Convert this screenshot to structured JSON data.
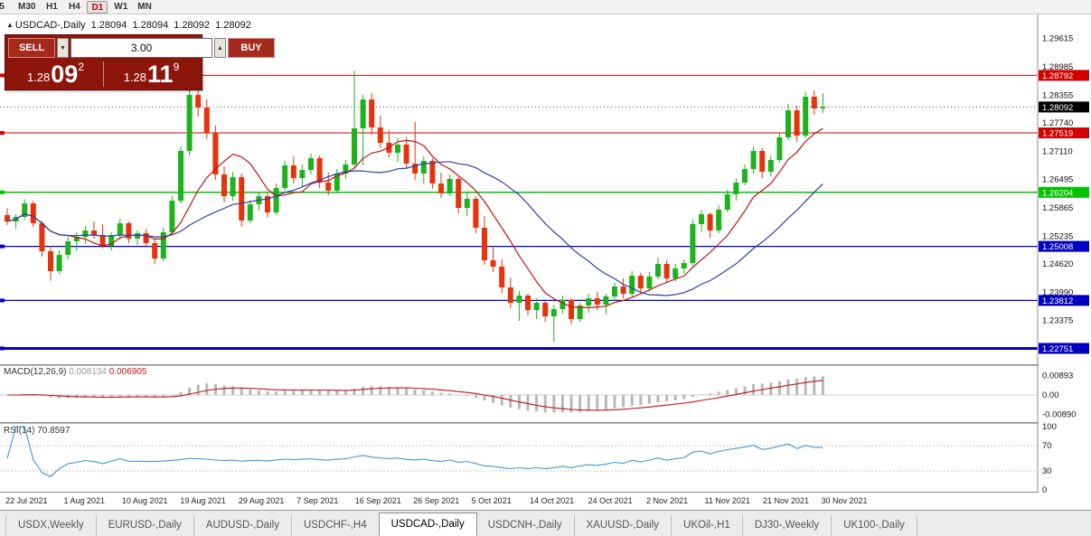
{
  "toolbar": {
    "timeframes": [
      {
        "label": "5",
        "active": false
      },
      {
        "label": "M30",
        "active": false
      },
      {
        "label": "H1",
        "active": false
      },
      {
        "label": "H4",
        "active": false
      },
      {
        "label": "D1",
        "active": true
      },
      {
        "label": "W1",
        "active": false
      },
      {
        "label": "MN",
        "active": false
      }
    ]
  },
  "icons": {
    "collapse_triangle": "▲",
    "volume_down": "▼",
    "volume_up": "▲"
  },
  "chart_header": {
    "symbol": "USDCAD-,Daily",
    "open": "1.28094",
    "high": "1.28094",
    "low": "1.28092",
    "close": "1.28092"
  },
  "trade_panel": {
    "sell_label": "SELL",
    "buy_label": "BUY",
    "volume": "3.00",
    "sell_price_prefix": "1.28",
    "sell_price_big": "09",
    "sell_price_sup": "2",
    "buy_price_prefix": "1.28",
    "buy_price_big": "11",
    "buy_price_sup": "9"
  },
  "chart_data": {
    "type": "candlestick",
    "title": "USDCAD-,Daily",
    "x_dates": [
      "22 Jul 2021",
      "1 Aug 2021",
      "10 Aug 2021",
      "19 Aug 2021",
      "29 Aug 2021",
      "7 Sep 2021",
      "16 Sep 2021",
      "26 Sep 2021",
      "5 Oct 2021",
      "14 Oct 2021",
      "24 Oct 2021",
      "2 Nov 2021",
      "11 Nov 2021",
      "21 Nov 2021",
      "30 Nov 2021"
    ],
    "price_axis_ticks": [
      "1.29615",
      "1.28985",
      "1.28355",
      "1.27740",
      "1.27110",
      "1.26495",
      "1.25865",
      "1.25235",
      "1.24620",
      "1.23990",
      "1.23375"
    ],
    "candles": [
      [
        1.257,
        1.2585,
        1.2548,
        1.2556
      ],
      [
        1.2556,
        1.2572,
        1.254,
        1.2566
      ],
      [
        1.2566,
        1.2605,
        1.256,
        1.2596
      ],
      [
        1.2596,
        1.2602,
        1.2544,
        1.2552
      ],
      [
        1.2552,
        1.2558,
        1.2478,
        1.249
      ],
      [
        1.249,
        1.2502,
        1.2425,
        1.2446
      ],
      [
        1.2446,
        1.2492,
        1.244,
        1.2482
      ],
      [
        1.2482,
        1.2522,
        1.2472,
        1.2512
      ],
      [
        1.2512,
        1.2532,
        1.2492,
        1.2522
      ],
      [
        1.2522,
        1.2546,
        1.2506,
        1.2536
      ],
      [
        1.2536,
        1.2556,
        1.2518,
        1.2526
      ],
      [
        1.2526,
        1.255,
        1.2496,
        1.2502
      ],
      [
        1.2502,
        1.2532,
        1.2492,
        1.2526
      ],
      [
        1.2526,
        1.2562,
        1.2516,
        1.2552
      ],
      [
        1.2552,
        1.2556,
        1.2508,
        1.2518
      ],
      [
        1.2518,
        1.2536,
        1.2504,
        1.253
      ],
      [
        1.253,
        1.254,
        1.2498,
        1.2508
      ],
      [
        1.2508,
        1.2518,
        1.2462,
        1.2474
      ],
      [
        1.2474,
        1.2542,
        1.2468,
        1.2532
      ],
      [
        1.2532,
        1.2612,
        1.2526,
        1.2602
      ],
      [
        1.2602,
        1.2722,
        1.2596,
        1.2712
      ],
      [
        1.2712,
        1.2852,
        1.2702,
        1.2836
      ],
      [
        1.2836,
        1.2858,
        1.2788,
        1.2808
      ],
      [
        1.2808,
        1.2826,
        1.2738,
        1.2752
      ],
      [
        1.2752,
        1.2768,
        1.2648,
        1.266
      ],
      [
        1.266,
        1.2678,
        1.2598,
        1.2612
      ],
      [
        1.2612,
        1.2666,
        1.2602,
        1.2654
      ],
      [
        1.2654,
        1.2662,
        1.2545,
        1.2558
      ],
      [
        1.2558,
        1.2604,
        1.2552,
        1.2594
      ],
      [
        1.2594,
        1.2622,
        1.258,
        1.2612
      ],
      [
        1.2612,
        1.2618,
        1.2565,
        1.2576
      ],
      [
        1.2576,
        1.264,
        1.257,
        1.263
      ],
      [
        1.263,
        1.269,
        1.2624,
        1.268
      ],
      [
        1.268,
        1.27,
        1.264,
        1.2652
      ],
      [
        1.2652,
        1.2682,
        1.2632,
        1.267
      ],
      [
        1.267,
        1.2706,
        1.266,
        1.2696
      ],
      [
        1.2696,
        1.2702,
        1.263,
        1.2642
      ],
      [
        1.2642,
        1.2664,
        1.2614,
        1.2624
      ],
      [
        1.2624,
        1.2672,
        1.2618,
        1.2662
      ],
      [
        1.2662,
        1.2692,
        1.265,
        1.2682
      ],
      [
        1.2682,
        1.289,
        1.2676,
        1.2762
      ],
      [
        1.2762,
        1.2836,
        1.268,
        1.2826
      ],
      [
        1.2826,
        1.284,
        1.2748,
        1.2764
      ],
      [
        1.2764,
        1.279,
        1.2718,
        1.273
      ],
      [
        1.273,
        1.2758,
        1.2698,
        1.2708
      ],
      [
        1.2708,
        1.274,
        1.2688,
        1.2726
      ],
      [
        1.2726,
        1.2742,
        1.2672,
        1.2684
      ],
      [
        1.2684,
        1.2776,
        1.2648,
        1.2662
      ],
      [
        1.2662,
        1.27,
        1.264,
        1.269
      ],
      [
        1.269,
        1.2696,
        1.2628,
        1.264
      ],
      [
        1.264,
        1.2664,
        1.2608,
        1.2618
      ],
      [
        1.2618,
        1.266,
        1.2612,
        1.265
      ],
      [
        1.265,
        1.2654,
        1.2574,
        1.2586
      ],
      [
        1.2586,
        1.2622,
        1.2568,
        1.2606
      ],
      [
        1.2606,
        1.2612,
        1.253,
        1.2542
      ],
      [
        1.2542,
        1.2568,
        1.246,
        1.247
      ],
      [
        1.247,
        1.2502,
        1.2444,
        1.2456
      ],
      [
        1.2456,
        1.2472,
        1.2398,
        1.241
      ],
      [
        1.241,
        1.2432,
        1.2364,
        1.2376
      ],
      [
        1.2376,
        1.2402,
        1.2336,
        1.2392
      ],
      [
        1.2392,
        1.2396,
        1.2348,
        1.236
      ],
      [
        1.236,
        1.2386,
        1.234,
        1.2376
      ],
      [
        1.2376,
        1.238,
        1.2334,
        1.2346
      ],
      [
        1.2346,
        1.2372,
        1.229,
        1.2362
      ],
      [
        1.2362,
        1.2392,
        1.2352,
        1.2382
      ],
      [
        1.2382,
        1.2386,
        1.2328,
        1.234
      ],
      [
        1.234,
        1.2376,
        1.2334,
        1.237
      ],
      [
        1.237,
        1.2396,
        1.2354,
        1.2386
      ],
      [
        1.2386,
        1.24,
        1.236,
        1.2372
      ],
      [
        1.2372,
        1.2396,
        1.235,
        1.239
      ],
      [
        1.239,
        1.242,
        1.238,
        1.2412
      ],
      [
        1.2412,
        1.243,
        1.2386,
        1.2396
      ],
      [
        1.2396,
        1.2446,
        1.239,
        1.2436
      ],
      [
        1.2436,
        1.2442,
        1.2398,
        1.2408
      ],
      [
        1.2408,
        1.2444,
        1.2402,
        1.2434
      ],
      [
        1.2434,
        1.2476,
        1.2428,
        1.2462
      ],
      [
        1.2462,
        1.247,
        1.242,
        1.243
      ],
      [
        1.243,
        1.2462,
        1.2424,
        1.2452
      ],
      [
        1.2452,
        1.2472,
        1.244,
        1.2464
      ],
      [
        1.2464,
        1.256,
        1.2458,
        1.255
      ],
      [
        1.255,
        1.2582,
        1.2532,
        1.2572
      ],
      [
        1.2572,
        1.2576,
        1.252,
        1.2536
      ],
      [
        1.2536,
        1.2592,
        1.253,
        1.2582
      ],
      [
        1.2582,
        1.2626,
        1.2576,
        1.2616
      ],
      [
        1.2616,
        1.2652,
        1.2602,
        1.2642
      ],
      [
        1.2642,
        1.2682,
        1.2636,
        1.2672
      ],
      [
        1.2672,
        1.2722,
        1.2662,
        1.2712
      ],
      [
        1.2712,
        1.2718,
        1.2652,
        1.2666
      ],
      [
        1.2666,
        1.2702,
        1.2656,
        1.2692
      ],
      [
        1.2692,
        1.2752,
        1.2686,
        1.2742
      ],
      [
        1.2742,
        1.2816,
        1.2736,
        1.2802
      ],
      [
        1.2802,
        1.2812,
        1.2732,
        1.2746
      ],
      [
        1.2746,
        1.2842,
        1.274,
        1.2832
      ],
      [
        1.2832,
        1.2846,
        1.2792,
        1.2806
      ],
      [
        1.2806,
        1.284,
        1.2796,
        1.28092
      ]
    ],
    "horizontal_lines": [
      {
        "value": 1.28792,
        "text": "1.28792",
        "color": "#d40000",
        "width": 1
      },
      {
        "value": 1.27519,
        "text": "1.27519",
        "color": "#d40000",
        "width": 1
      },
      {
        "value": 1.26204,
        "text": "1.26204",
        "color": "#00c400",
        "width": 1.5
      },
      {
        "value": 1.25008,
        "text": "1.25008",
        "color": "#0000c0",
        "width": 1.2
      },
      {
        "value": 1.23812,
        "text": "1.23812",
        "color": "#0000c0",
        "width": 1.2
      },
      {
        "value": 1.22751,
        "text": "1.22751",
        "color": "#0000c0",
        "width": 3
      }
    ],
    "current_price_label": {
      "value": 1.28092,
      "text": "1.28092",
      "bg": "#000000"
    },
    "moving_averages": [
      {
        "type": "sma",
        "period": 8,
        "color": "#c01414"
      },
      {
        "type": "sma",
        "period": 20,
        "color": "#2c3fa8"
      }
    ],
    "panels": {
      "macd": {
        "name": "MACD(12,26,9)",
        "fast": 12,
        "slow": 26,
        "signal": 9,
        "display_values": [
          "0.008134",
          "0.006905"
        ],
        "axis_ticks": [
          "0.00893",
          "0.00",
          "-0.00890"
        ],
        "hist_color": "#b8b8b8",
        "signal_color": "#c01414"
      },
      "rsi": {
        "name": "RSI(14)",
        "period": 14,
        "display_value": "70.8597",
        "axis_ticks": [
          "100",
          "70",
          "30",
          "0"
        ],
        "levels": [
          70,
          30
        ],
        "color": "#3f97d9"
      }
    },
    "colors": {
      "up": "#1cb31c",
      "down": "#e8320c",
      "background": "#ffffff"
    }
  },
  "tabs": [
    {
      "label": "USDX,Weekly",
      "active": false
    },
    {
      "label": "EURUSD-,Daily",
      "active": false
    },
    {
      "label": "AUDUSD-,Daily",
      "active": false
    },
    {
      "label": "USDCHF-,H4",
      "active": false
    },
    {
      "label": "USDCAD-,Daily",
      "active": true
    },
    {
      "label": "USDCNH-,Daily",
      "active": false
    },
    {
      "label": "XAUUSD-,Daily",
      "active": false
    },
    {
      "label": "UKOil-,H1",
      "active": false
    },
    {
      "label": "DJ30-,Weekly",
      "active": false
    },
    {
      "label": "UK100-,Daily",
      "active": false
    }
  ]
}
